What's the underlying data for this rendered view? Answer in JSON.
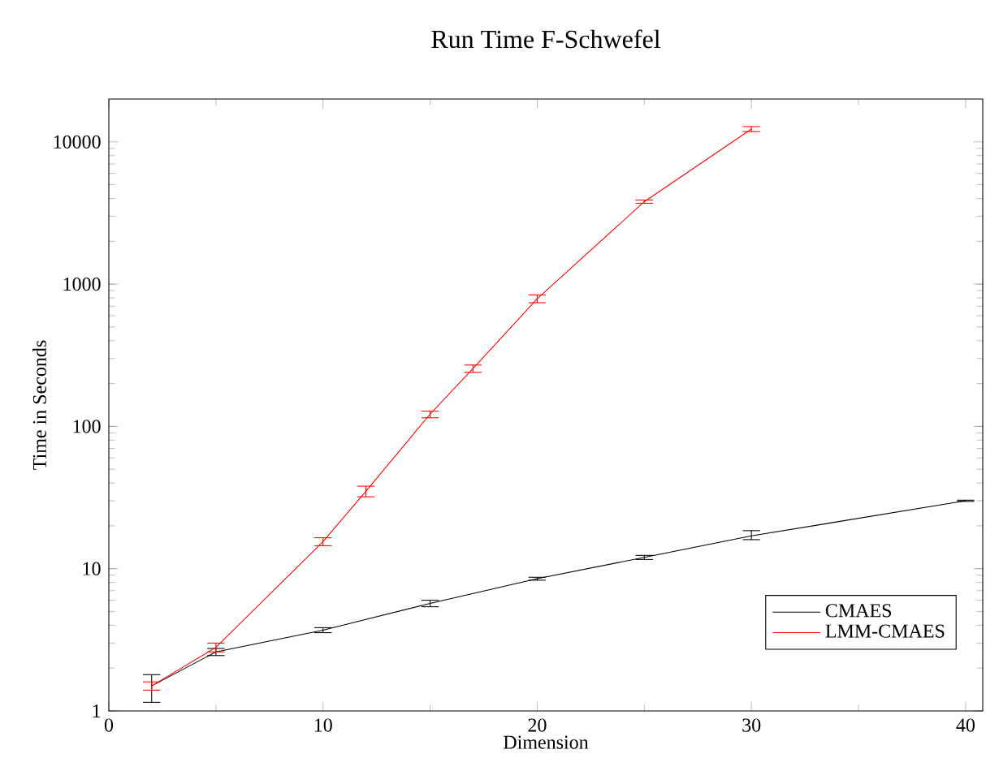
{
  "chart_data": {
    "type": "line",
    "title": "Run Time F-Schwefel",
    "xlabel": "Dimension",
    "ylabel": "Time in Seconds",
    "log": "y",
    "xlim": [
      0,
      40.8
    ],
    "xticks": [
      0,
      10,
      20,
      30,
      40
    ],
    "ylim": [
      1,
      20000
    ],
    "yticks": [
      1,
      10,
      100,
      1000,
      10000
    ],
    "legend": "bottom right",
    "marker": "none",
    "line_style": "solid",
    "grid": false,
    "series": [
      {
        "name": "CMAES",
        "color": "#000000",
        "x": [
          2,
          5,
          10,
          15,
          20,
          25,
          30,
          40
        ],
        "values": [
          1.5,
          2.6,
          3.7,
          5.7,
          8.5,
          12,
          17,
          30
        ],
        "errors": [
          [
            1.15,
            1.8
          ],
          [
            2.45,
            2.75
          ],
          [
            3.55,
            3.85
          ],
          [
            5.4,
            6.0
          ],
          [
            8.3,
            8.7
          ],
          [
            11.6,
            12.4
          ],
          [
            16,
            18.5
          ],
          [
            29.7,
            30.3
          ]
        ]
      },
      {
        "name": "LMM-CMAES",
        "color": "#ff0000",
        "x": [
          2,
          5,
          10,
          12,
          15,
          17,
          20,
          25,
          30
        ],
        "values": [
          1.5,
          2.8,
          15.5,
          35,
          122,
          255,
          790,
          3800,
          12300
        ],
        "errors": [
          [
            1.4,
            1.6
          ],
          [
            2.6,
            3.0
          ],
          [
            14.5,
            16.5
          ],
          [
            32,
            38
          ],
          [
            115,
            128
          ],
          [
            240,
            270
          ],
          [
            740,
            840
          ],
          [
            3700,
            3900
          ],
          [
            11800,
            12800
          ]
        ]
      }
    ]
  }
}
